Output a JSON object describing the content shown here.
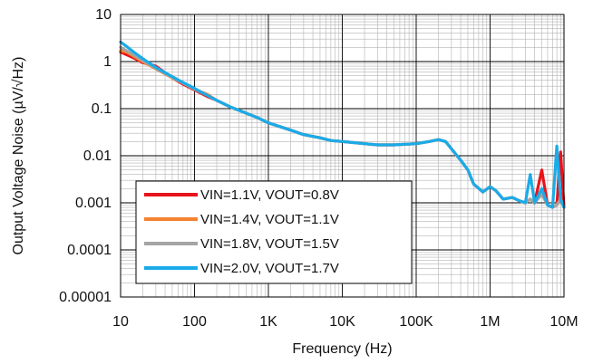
{
  "chart_data": {
    "type": "line",
    "xlabel": "Frequency (Hz)",
    "ylabel": "Output Voltage Noise (µV/√Hz)",
    "xscale": "log",
    "yscale": "log",
    "xlim": [
      10,
      10000000
    ],
    "ylim": [
      1e-05,
      10
    ],
    "x_ticks": [
      {
        "value": 10,
        "label": "10"
      },
      {
        "value": 100,
        "label": "100"
      },
      {
        "value": 1000,
        "label": "1K"
      },
      {
        "value": 10000,
        "label": "10K"
      },
      {
        "value": 100000,
        "label": "100K"
      },
      {
        "value": 1000000,
        "label": "1M"
      },
      {
        "value": 10000000,
        "label": "10M"
      }
    ],
    "y_ticks": [
      {
        "value": 10,
        "label": "10"
      },
      {
        "value": 1,
        "label": "1"
      },
      {
        "value": 0.1,
        "label": "0.1"
      },
      {
        "value": 0.01,
        "label": "0.01"
      },
      {
        "value": 0.001,
        "label": "0.001"
      },
      {
        "value": 0.0001,
        "label": "0.0001"
      },
      {
        "value": 1e-05,
        "label": "0.00001"
      }
    ],
    "grid": true,
    "legend_position": "bottom-left",
    "x": [
      10,
      12,
      15,
      20,
      30,
      50,
      70,
      100,
      150,
      200,
      300,
      500,
      700,
      1000,
      2000,
      3000,
      5000,
      7000,
      10000,
      20000,
      30000,
      50000,
      100000,
      150000,
      200000,
      250000,
      300000,
      400000,
      500000,
      600000,
      800000,
      1000000,
      1200000,
      1500000,
      2000000,
      2500000,
      3000000,
      3500000,
      4000000,
      5000000,
      6000000,
      7000000,
      8000000,
      9000000,
      10000000
    ],
    "series": [
      {
        "name": "VIN=1.1V, VOUT=0.8V",
        "color": "#e8141b",
        "values": [
          1.6,
          1.4,
          1.2,
          0.95,
          0.8,
          0.45,
          0.33,
          0.25,
          0.18,
          0.15,
          0.11,
          0.08,
          0.065,
          0.05,
          0.035,
          0.028,
          0.024,
          0.021,
          0.02,
          0.018,
          0.017,
          0.017,
          0.018,
          0.02,
          0.022,
          0.02,
          0.014,
          0.008,
          0.005,
          0.0025,
          0.0017,
          0.0022,
          0.0018,
          0.0012,
          0.0013,
          0.0011,
          0.001,
          0.0012,
          0.001,
          0.005,
          0.0009,
          0.0008,
          0.0009,
          0.012,
          0.0008
        ]
      },
      {
        "name": "VIN=1.4V, VOUT=1.1V",
        "color": "#f58230",
        "values": [
          1.7,
          1.6,
          1.3,
          1.0,
          0.7,
          0.45,
          0.35,
          0.26,
          0.2,
          0.15,
          0.11,
          0.08,
          0.065,
          0.05,
          0.035,
          0.028,
          0.024,
          0.021,
          0.02,
          0.018,
          0.017,
          0.017,
          0.018,
          0.02,
          0.022,
          0.02,
          0.014,
          0.008,
          0.005,
          0.0025,
          0.0017,
          0.0022,
          0.0018,
          0.0012,
          0.0013,
          0.0011,
          0.001,
          0.0012,
          0.001,
          0.0016,
          0.0009,
          0.0008,
          0.0009,
          0.0012,
          0.0008
        ]
      },
      {
        "name": "VIN=1.8V, VOUT=1.5V",
        "color": "#a5a5a5",
        "values": [
          2.0,
          1.7,
          1.4,
          1.05,
          0.72,
          0.46,
          0.35,
          0.26,
          0.19,
          0.15,
          0.11,
          0.08,
          0.065,
          0.05,
          0.035,
          0.028,
          0.024,
          0.021,
          0.02,
          0.018,
          0.017,
          0.017,
          0.018,
          0.02,
          0.022,
          0.02,
          0.014,
          0.008,
          0.005,
          0.0025,
          0.0017,
          0.0022,
          0.0018,
          0.0012,
          0.0013,
          0.0011,
          0.001,
          0.0012,
          0.001,
          0.0015,
          0.0009,
          0.0008,
          0.0009,
          0.0012,
          0.0008
        ]
      },
      {
        "name": "VIN=2.0V, VOUT=1.7V",
        "color": "#1aabe8",
        "values": [
          2.6,
          2.1,
          1.6,
          1.15,
          0.75,
          0.48,
          0.36,
          0.27,
          0.19,
          0.15,
          0.11,
          0.08,
          0.065,
          0.05,
          0.035,
          0.028,
          0.024,
          0.021,
          0.02,
          0.018,
          0.017,
          0.017,
          0.018,
          0.02,
          0.022,
          0.02,
          0.014,
          0.008,
          0.005,
          0.0025,
          0.0017,
          0.0022,
          0.0018,
          0.0012,
          0.0013,
          0.0011,
          0.001,
          0.004,
          0.001,
          0.002,
          0.0009,
          0.0008,
          0.016,
          0.0012,
          0.0008
        ]
      }
    ]
  }
}
